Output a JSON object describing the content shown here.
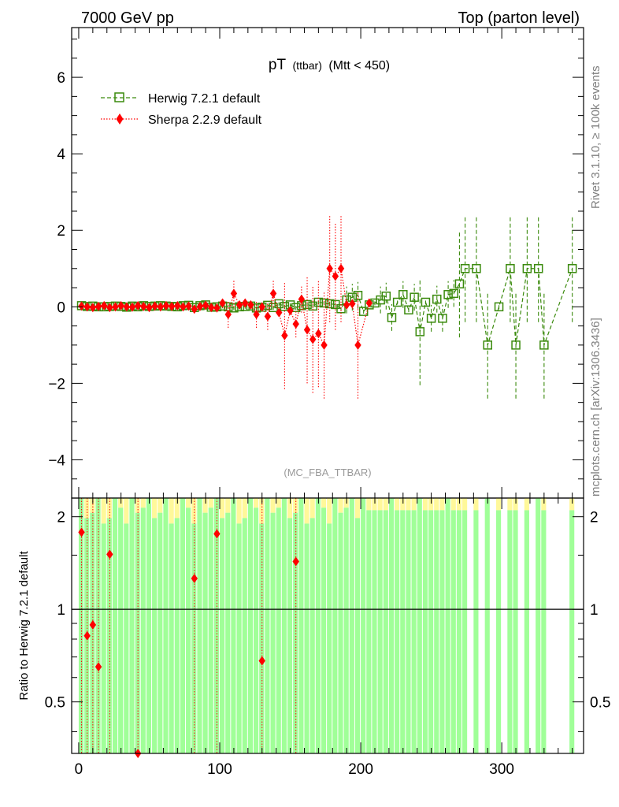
{
  "header": {
    "left": "7000 GeV pp",
    "right": "Top (parton level)"
  },
  "side": {
    "rivet": "Rivet 3.1.10, ≥ 100k events",
    "mcplots": "mcplots.cern.ch [arXiv:1306.3436]"
  },
  "chart_data": [
    {
      "type": "line",
      "title_main": "pT",
      "title_sub": "(ttbar)",
      "title_cut": "(Mtt < 450)",
      "watermark": "(MC_FBA_TTBAR)",
      "xlim": [
        -5,
        358
      ],
      "ylim": [
        -5,
        7.3
      ],
      "yticks": [
        -4,
        -2,
        0,
        2,
        4,
        6
      ],
      "ytick_labels": [
        "−4",
        "−2",
        "0",
        "2",
        "4",
        "6"
      ],
      "legend": "top-left",
      "series": [
        {
          "name": "Herwig 7.2.1 default",
          "color": "#3a8a0c",
          "marker": "open-square",
          "x": [
            2,
            6,
            10,
            14,
            18,
            22,
            26,
            30,
            34,
            38,
            42,
            46,
            50,
            54,
            58,
            62,
            66,
            70,
            74,
            78,
            82,
            86,
            90,
            94,
            98,
            102,
            106,
            110,
            114,
            118,
            122,
            126,
            130,
            134,
            138,
            142,
            146,
            150,
            154,
            158,
            162,
            166,
            170,
            174,
            178,
            182,
            186,
            190,
            194,
            198,
            202,
            206,
            210,
            214,
            218,
            222,
            226,
            230,
            234,
            238,
            242,
            246,
            250,
            254,
            258,
            262,
            266,
            270,
            274,
            282,
            290,
            298,
            306,
            310,
            318,
            326,
            330,
            350
          ],
          "values": [
            0.03,
            0.01,
            0.02,
            0.0,
            0.0,
            0.01,
            0.02,
            0.01,
            -0.01,
            0.02,
            0.0,
            0.03,
            0.01,
            0.02,
            0.03,
            0.02,
            0.01,
            0.0,
            0.03,
            0.04,
            -0.02,
            0.03,
            0.05,
            -0.01,
            0.0,
            0.02,
            0.0,
            -0.03,
            0.0,
            0.01,
            0.02,
            -0.03,
            -0.01,
            0.04,
            -0.02,
            0.08,
            0.01,
            0.05,
            -0.02,
            0.03,
            0.06,
            0.02,
            0.12,
            0.1,
            0.08,
            0.06,
            -0.05,
            0.18,
            0.25,
            0.3,
            -0.12,
            0.05,
            0.1,
            0.18,
            0.28,
            -0.28,
            0.12,
            0.32,
            -0.08,
            0.25,
            -0.65,
            0.12,
            -0.3,
            0.2,
            -0.3,
            0.32,
            0.35,
            0.6,
            1.0,
            1.0,
            -1.0,
            0.0,
            1.0,
            -1.0,
            1.0,
            1.0,
            -1.0,
            1.0
          ]
        },
        {
          "name": "Sherpa 2.2.9 default",
          "color": "#ff0000",
          "marker": "filled-diamond",
          "x": [
            2,
            6,
            10,
            14,
            18,
            22,
            26,
            30,
            34,
            38,
            42,
            46,
            50,
            54,
            58,
            62,
            66,
            70,
            74,
            78,
            82,
            86,
            90,
            94,
            98,
            102,
            106,
            110,
            114,
            118,
            122,
            126,
            130,
            134,
            138,
            142,
            146,
            150,
            154,
            158,
            162,
            166,
            170,
            174,
            178,
            182,
            186,
            190,
            194,
            198,
            206
          ],
          "values": [
            0.02,
            0.0,
            -0.02,
            0.01,
            0.03,
            -0.02,
            0.0,
            0.03,
            0.0,
            -0.01,
            0.03,
            0.01,
            -0.02,
            0.02,
            0.0,
            0.03,
            0.01,
            0.03,
            0.0,
            0.02,
            -0.06,
            0.01,
            0.04,
            -0.02,
            -0.03,
            0.1,
            -0.2,
            0.35,
            0.05,
            0.1,
            0.05,
            -0.2,
            0.0,
            -0.25,
            0.35,
            -0.15,
            -0.75,
            -0.1,
            -0.45,
            0.2,
            -0.6,
            -0.85,
            -0.7,
            -1.0,
            1.0,
            0.8,
            1.0,
            0.05,
            0.08,
            -1.0,
            0.1
          ]
        }
      ]
    },
    {
      "type": "area",
      "ylabel": "Ratio to Herwig 7.2.1 default",
      "xlim": [
        -5,
        358
      ],
      "ylim": [
        0.34,
        2.3
      ],
      "ylog": true,
      "yticks": [
        0.5,
        1,
        2
      ],
      "ytick_labels": [
        "0.5",
        "1",
        "2"
      ],
      "xticks": [
        0,
        100,
        200,
        300
      ],
      "xtick_labels": [
        "0",
        "100",
        "200",
        "300"
      ],
      "reference_line": 1,
      "bands": {
        "inner_color": "#a0ff98",
        "outer_color": "#fff89a"
      },
      "series": [
        {
          "name": "Sherpa 2.2.9 default",
          "color": "#ff0000",
          "x": [
            2,
            6,
            10,
            14,
            22,
            42,
            82,
            98,
            130,
            154
          ],
          "values": [
            1.78,
            0.82,
            0.89,
            0.65,
            1.51,
            0.34,
            1.26,
            1.76,
            0.68,
            1.43
          ]
        }
      ]
    }
  ]
}
